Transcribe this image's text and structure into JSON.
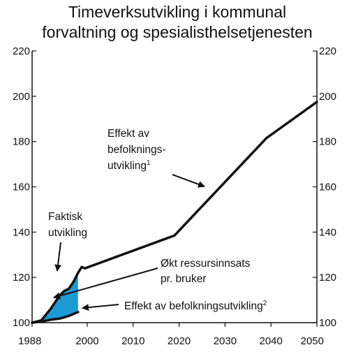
{
  "chart_data": {
    "type": "line",
    "title_lines": [
      "Timeverksutvikling i kommunal",
      "forvaltning og spesialisthelsetjenesten"
    ],
    "xlabel": "",
    "ylabel": "",
    "xlim": [
      1988,
      2050
    ],
    "ylim": [
      100,
      220
    ],
    "x_ticks": [
      1988,
      2000,
      2010,
      2020,
      2030,
      2040,
      2050
    ],
    "y_ticks": [
      100,
      120,
      140,
      160,
      180,
      200,
      220
    ],
    "grid": false,
    "colors": {
      "line": "#111111",
      "fill": "#1c9ad6",
      "axis": "#111111"
    },
    "series": [
      {
        "key": "actual",
        "x": [
          1988,
          1990,
          1992,
          1994,
          1995,
          1996,
          1997,
          1998,
          1998.8,
          1999.5
        ],
        "y": [
          100,
          101,
          106,
          112,
          114,
          115,
          118,
          122,
          124.6,
          124
        ]
      },
      {
        "key": "projection",
        "x": [
          1999.5,
          2019,
          2039,
          2050
        ],
        "y": [
          124,
          138.5,
          181.5,
          197.5
        ]
      },
      {
        "key": "demography",
        "x": [
          1988,
          1990,
          1992,
          1994,
          1996,
          1998
        ],
        "y": [
          100,
          100.5,
          101.3,
          101.8,
          103,
          104.7
        ]
      }
    ],
    "shaded_area": {
      "x": [
        1988,
        1990,
        1992,
        1994,
        1995,
        1996,
        1997,
        1998
      ],
      "upper": [
        100,
        101,
        106,
        112,
        114,
        115,
        118,
        122
      ],
      "lower": [
        100,
        100.5,
        101.3,
        101.8,
        102.4,
        103,
        103.8,
        104.7
      ]
    },
    "annotations": [
      {
        "key": "befolkning",
        "lines": [
          "Effekt av",
          "befolknings-",
          "utvikling"
        ],
        "superscript": "1"
      },
      {
        "key": "faktisk",
        "lines": [
          "Faktisk",
          "utvikling"
        ]
      },
      {
        "key": "ressurs",
        "lines": [
          "Økt ressursinnsats",
          "pr. bruker"
        ]
      },
      {
        "key": "befolkning2",
        "lines": [
          "Effekt av befolkningsutvikling"
        ],
        "superscript": "2"
      }
    ]
  }
}
